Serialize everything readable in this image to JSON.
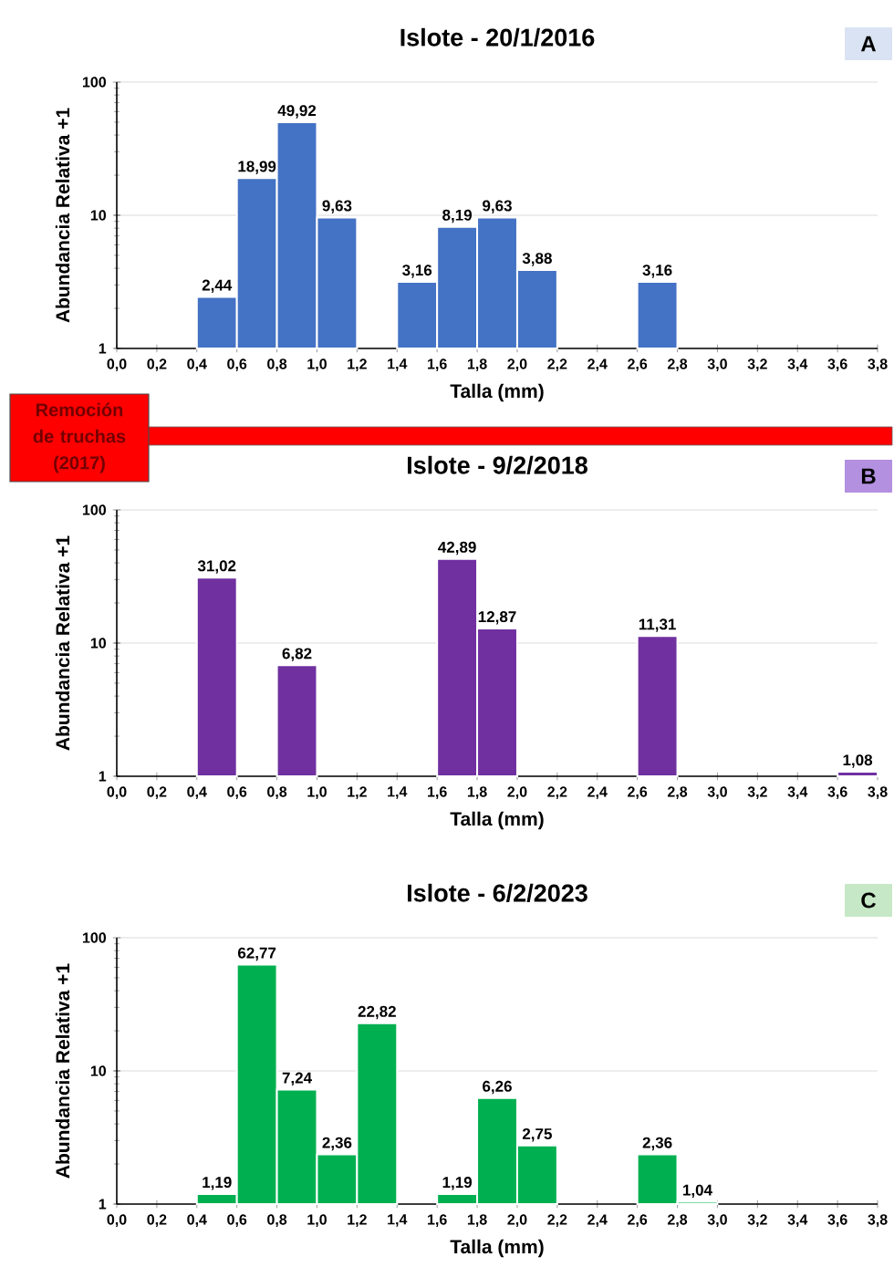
{
  "chart_data": [
    {
      "type": "histogram",
      "title": "Islote - 20/1/2016",
      "xlabel": "Talla (mm)",
      "ylabel": "Abundancia Relativa +1",
      "color": "#4472c4",
      "log": "y",
      "grid": "y",
      "bins": [
        0.0,
        0.2,
        0.4,
        0.6,
        0.8,
        1.0,
        1.2,
        1.4,
        1.6,
        1.8,
        2.0,
        2.2,
        2.4,
        2.6,
        2.8,
        3.0,
        3.2,
        3.4,
        3.6,
        3.8
      ],
      "values": [
        null,
        null,
        2.44,
        18.99,
        49.92,
        9.63,
        null,
        3.16,
        8.19,
        9.63,
        3.88,
        null,
        null,
        3.16,
        null,
        null,
        null,
        null,
        null
      ],
      "value_labels": [
        null,
        null,
        "2,44",
        "18,99",
        "49,92",
        "9,63",
        null,
        "3,16",
        "8,19",
        "9,63",
        "3,88",
        null,
        null,
        "3,16",
        null,
        null,
        null,
        null,
        null
      ],
      "xlim": [
        0.0,
        3.8
      ],
      "ylim": [
        1,
        100
      ],
      "yticks": [
        1,
        10,
        100
      ],
      "xticks": [
        {
          "value": 0.0,
          "label": "0,0"
        },
        {
          "value": 0.2,
          "label": "0,2"
        },
        {
          "value": 0.4,
          "label": "0,4"
        },
        {
          "value": 0.6,
          "label": "0,6"
        },
        {
          "value": 0.8,
          "label": "0,8"
        },
        {
          "value": 1.0,
          "label": "1,0"
        },
        {
          "value": 1.2,
          "label": "1,2"
        },
        {
          "value": 1.4,
          "label": "1,4"
        },
        {
          "value": 1.6,
          "label": "1,6"
        },
        {
          "value": 1.8,
          "label": "1,8"
        },
        {
          "value": 2.0,
          "label": "2,0"
        },
        {
          "value": 2.2,
          "label": "2,2"
        },
        {
          "value": 2.4,
          "label": "2,4"
        },
        {
          "value": 2.6,
          "label": "2,6"
        },
        {
          "value": 2.8,
          "label": "2,8"
        },
        {
          "value": 3.0,
          "label": "3,0"
        },
        {
          "value": 3.2,
          "label": "3,2"
        },
        {
          "value": 3.4,
          "label": "3,4"
        },
        {
          "value": 3.6,
          "label": "3,6"
        },
        {
          "value": 3.8,
          "label": "3,8"
        }
      ],
      "annotations": [
        "A"
      ]
    },
    {
      "type": "histogram",
      "title": "Islote - 9/2/2018",
      "xlabel": "Talla (mm)",
      "ylabel": "Abundancia Relativa +1",
      "color": "#7030a0",
      "log": "y",
      "grid": "y",
      "bins": [
        0.0,
        0.2,
        0.4,
        0.6,
        0.8,
        1.0,
        1.2,
        1.4,
        1.6,
        1.8,
        2.0,
        2.2,
        2.4,
        2.6,
        2.8,
        3.0,
        3.2,
        3.4,
        3.6,
        3.8
      ],
      "values": [
        null,
        null,
        31.02,
        null,
        6.82,
        null,
        null,
        null,
        42.89,
        12.87,
        null,
        null,
        null,
        11.31,
        null,
        null,
        null,
        null,
        1.08
      ],
      "value_labels": [
        null,
        null,
        "31,02",
        null,
        "6,82",
        null,
        null,
        null,
        "42,89",
        "12,87",
        null,
        null,
        null,
        "11,31",
        null,
        null,
        null,
        null,
        "1,08"
      ],
      "xlim": [
        0.0,
        3.8
      ],
      "ylim": [
        1,
        100
      ],
      "yticks": [
        1,
        10,
        100
      ],
      "xticks": [
        {
          "value": 0.0,
          "label": "0,0"
        },
        {
          "value": 0.2,
          "label": "0,2"
        },
        {
          "value": 0.4,
          "label": "0,4"
        },
        {
          "value": 0.6,
          "label": "0,6"
        },
        {
          "value": 0.8,
          "label": "0,8"
        },
        {
          "value": 1.0,
          "label": "1,0"
        },
        {
          "value": 1.2,
          "label": "1,2"
        },
        {
          "value": 1.4,
          "label": "1,4"
        },
        {
          "value": 1.6,
          "label": "1,6"
        },
        {
          "value": 1.8,
          "label": "1,8"
        },
        {
          "value": 2.0,
          "label": "2,0"
        },
        {
          "value": 2.2,
          "label": "2,2"
        },
        {
          "value": 2.4,
          "label": "2,4"
        },
        {
          "value": 2.6,
          "label": "2,6"
        },
        {
          "value": 2.8,
          "label": "2,8"
        },
        {
          "value": 3.0,
          "label": "3,0"
        },
        {
          "value": 3.2,
          "label": "3,2"
        },
        {
          "value": 3.4,
          "label": "3,4"
        },
        {
          "value": 3.6,
          "label": "3,6"
        },
        {
          "value": 3.8,
          "label": "3,8"
        }
      ],
      "annotations": [
        "B",
        "Remoción de truchas (2017)"
      ]
    },
    {
      "type": "histogram",
      "title": "Islote - 6/2/2023",
      "xlabel": "Talla (mm)",
      "ylabel": "Abundancia Relativa +1",
      "color": "#00b050",
      "log": "y",
      "grid": "y",
      "bins": [
        0.0,
        0.2,
        0.4,
        0.6,
        0.8,
        1.0,
        1.2,
        1.4,
        1.6,
        1.8,
        2.0,
        2.2,
        2.4,
        2.6,
        2.8,
        3.0,
        3.2,
        3.4,
        3.6,
        3.8
      ],
      "values": [
        null,
        null,
        1.19,
        62.77,
        7.24,
        2.36,
        22.82,
        null,
        1.19,
        6.26,
        2.75,
        null,
        null,
        2.36,
        1.04,
        null,
        null,
        null,
        null
      ],
      "value_labels": [
        null,
        null,
        "1,19",
        "62,77",
        "7,24",
        "2,36",
        "22,82",
        null,
        "1,19",
        "6,26",
        "2,75",
        null,
        null,
        "2,36",
        "1,04",
        null,
        null,
        null,
        null
      ],
      "xlim": [
        0.0,
        3.8
      ],
      "ylim": [
        1,
        100
      ],
      "yticks": [
        1,
        10,
        100
      ],
      "xticks": [
        {
          "value": 0.0,
          "label": "0,0"
        },
        {
          "value": 0.2,
          "label": "0,2"
        },
        {
          "value": 0.4,
          "label": "0,4"
        },
        {
          "value": 0.6,
          "label": "0,6"
        },
        {
          "value": 0.8,
          "label": "0,8"
        },
        {
          "value": 1.0,
          "label": "1,0"
        },
        {
          "value": 1.2,
          "label": "1,2"
        },
        {
          "value": 1.4,
          "label": "1,4"
        },
        {
          "value": 1.6,
          "label": "1,6"
        },
        {
          "value": 1.8,
          "label": "1,8"
        },
        {
          "value": 2.0,
          "label": "2,0"
        },
        {
          "value": 2.2,
          "label": "2,2"
        },
        {
          "value": 2.4,
          "label": "2,4"
        },
        {
          "value": 2.6,
          "label": "2,6"
        },
        {
          "value": 2.8,
          "label": "2,8"
        },
        {
          "value": 3.0,
          "label": "3,0"
        },
        {
          "value": 3.2,
          "label": "3,2"
        },
        {
          "value": 3.4,
          "label": "3,4"
        },
        {
          "value": 3.6,
          "label": "3,6"
        },
        {
          "value": 3.8,
          "label": "3,8"
        }
      ],
      "annotations": [
        "C"
      ]
    }
  ]
}
